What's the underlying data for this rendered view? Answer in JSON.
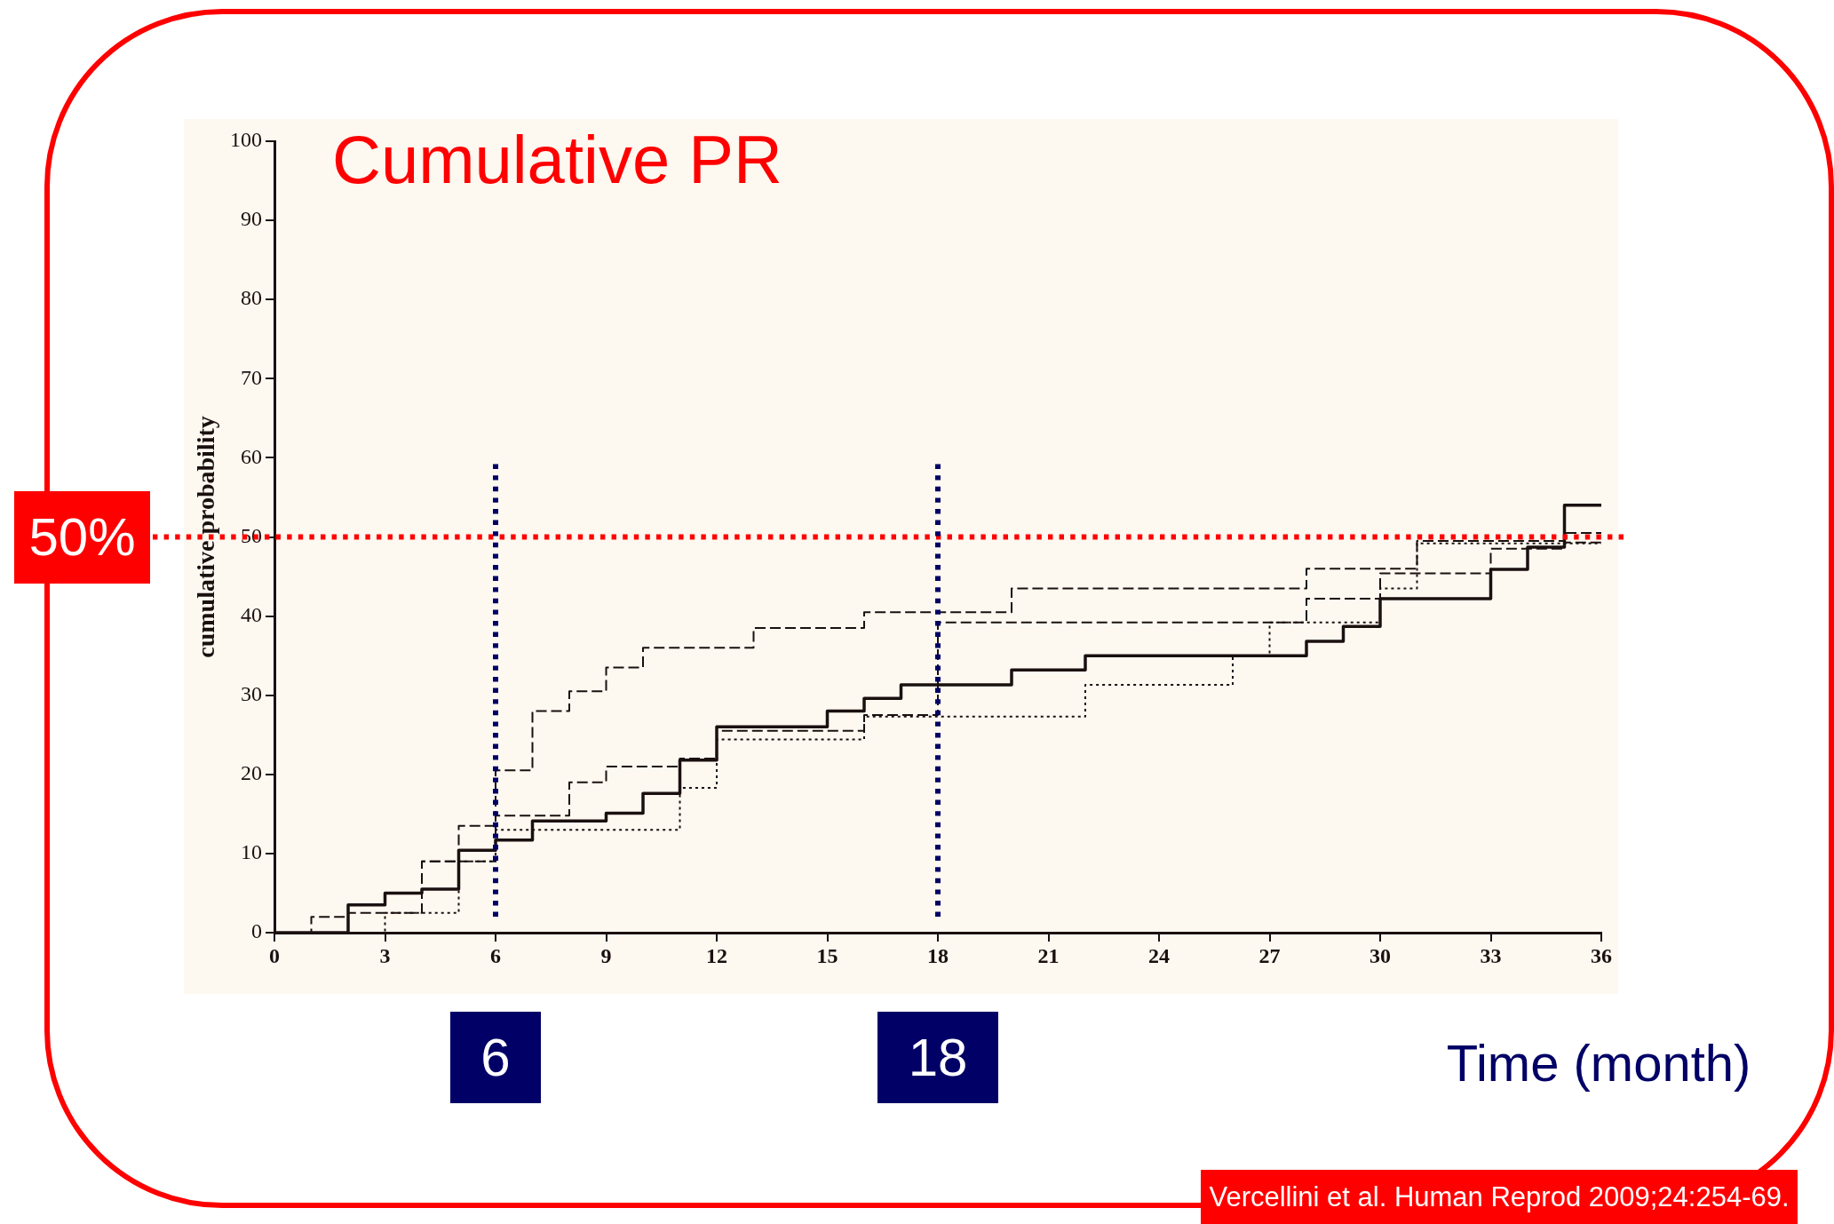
{
  "chart_data": {
    "type": "step",
    "title": "Cumulative PR",
    "ylabel": "cumulative probability",
    "xlabel": "Time (month)",
    "xlim": [
      0,
      36
    ],
    "xticks": [
      0,
      3,
      6,
      9,
      12,
      15,
      18,
      21,
      24,
      27,
      30,
      33,
      36
    ],
    "ylim": [
      0,
      100
    ],
    "yticks": [
      0,
      10,
      20,
      30,
      40,
      50,
      60,
      70,
      80,
      90,
      100
    ],
    "series": [
      {
        "color": "#1a1010",
        "line_style": "dashed",
        "x": [
          0,
          1,
          2,
          3,
          4,
          5,
          6,
          7,
          8,
          9,
          10,
          13,
          16,
          20,
          28,
          31,
          35,
          36
        ],
        "values": [
          0,
          2,
          3.5,
          5,
          9,
          13.5,
          20.5,
          28,
          30.5,
          33.5,
          36,
          38.5,
          40.5,
          43.5,
          46,
          49.5,
          50.5,
          50.5
        ]
      },
      {
        "color": "#1a1010",
        "line_style": "solid",
        "x": [
          0,
          2,
          3,
          4,
          5,
          6,
          7,
          9,
          10,
          11,
          12,
          15,
          16,
          17,
          20,
          22,
          28,
          29,
          30,
          33,
          34,
          35,
          36
        ],
        "values": [
          0,
          3.5,
          5,
          5.5,
          10.4,
          11.7,
          14.1,
          15.1,
          17.6,
          21.8,
          26,
          28,
          29.6,
          31.3,
          33.2,
          35,
          36.8,
          38.7,
          42.2,
          45.9,
          48.7,
          54,
          54
        ]
      },
      {
        "color": "#1a1010",
        "line_style": "dashed",
        "x": [
          0,
          2,
          4,
          6,
          8,
          9,
          11,
          12,
          16,
          18,
          28,
          30,
          33,
          35,
          36
        ],
        "values": [
          0,
          2.5,
          9,
          14.8,
          19,
          21,
          22,
          25.5,
          27.5,
          39.2,
          42.2,
          45.4,
          48.5,
          49.3,
          49.3
        ]
      },
      {
        "color": "#1a1010",
        "line_style": "dotted",
        "x": [
          0,
          3,
          5,
          6,
          11,
          12,
          16,
          22,
          26,
          27,
          30,
          31,
          36
        ],
        "values": [
          0,
          2.5,
          9,
          13,
          18.3,
          24.4,
          27.3,
          31.3,
          35,
          39.2,
          43.5,
          49.2,
          49.2
        ]
      }
    ],
    "ref_lines": [
      {
        "axis": "y",
        "value": 50,
        "label": "50%",
        "color": "#ff0000",
        "line_style": "dotted"
      },
      {
        "axis": "x",
        "value": 6,
        "label": "6",
        "color": "#000066",
        "line_style": "dotted"
      },
      {
        "axis": "x",
        "value": 18,
        "label": "18",
        "color": "#000066",
        "line_style": "dotted"
      }
    ],
    "annotations": [
      "Vercellini et al. Human Reprod 2009;24:254-69."
    ],
    "legend": false,
    "marker": "none"
  }
}
